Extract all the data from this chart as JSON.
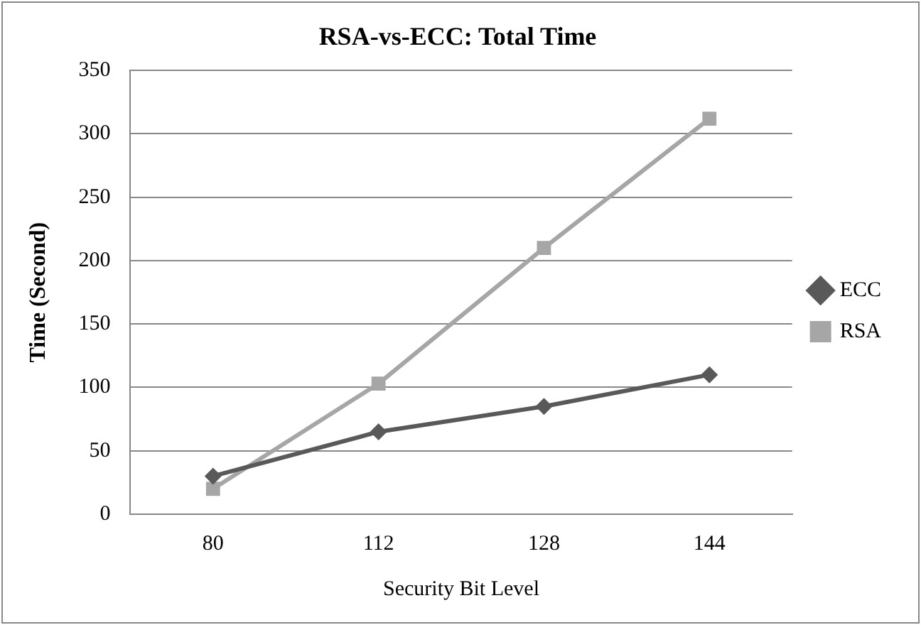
{
  "chart_data": {
    "type": "line",
    "title": "RSA-vs-ECC: Total Time",
    "xlabel": "Security Bit Level",
    "ylabel": "Time (Second)",
    "categories": [
      "80",
      "112",
      "128",
      "144"
    ],
    "series": [
      {
        "name": "ECC",
        "color": "#595959",
        "marker": "diamond",
        "values": [
          30,
          65,
          85,
          110
        ]
      },
      {
        "name": "RSA",
        "color": "#a6a6a6",
        "marker": "square",
        "values": [
          20,
          103,
          210,
          312
        ]
      }
    ],
    "ylim": [
      0,
      350
    ],
    "yticks": [
      0,
      50,
      100,
      150,
      200,
      250,
      300,
      350
    ],
    "grid": "y",
    "legend": "right",
    "line_style": "solid"
  }
}
